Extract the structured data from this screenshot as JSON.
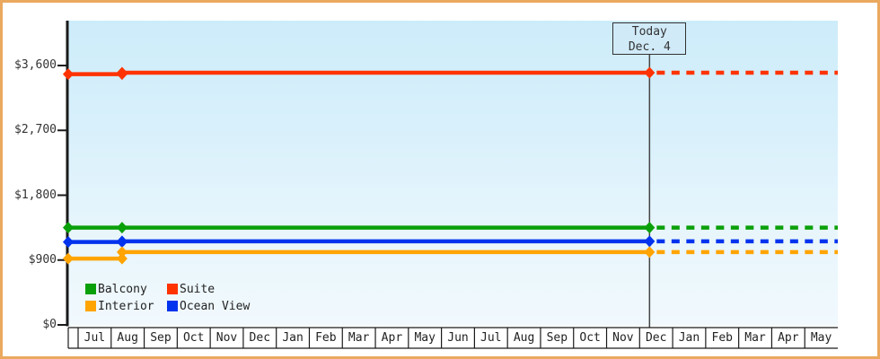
{
  "chart_data": {
    "type": "line",
    "title": "",
    "description": "Cabin price history with dashed future projection",
    "y_axis": {
      "ticks": [
        {
          "label": "$3,600",
          "value": 3600
        },
        {
          "label": "$2,700",
          "value": 2700
        },
        {
          "label": "$1,800",
          "value": 1800
        },
        {
          "label": "$900",
          "value": 900
        },
        {
          "label": "$0",
          "value": 0
        }
      ],
      "ylim": [
        0,
        4220
      ],
      "grid": false
    },
    "x_axis": {
      "months": [
        "Jul",
        "Aug",
        "Sep",
        "Oct",
        "Nov",
        "Dec",
        "Jan",
        "Feb",
        "Mar",
        "Apr",
        "May",
        "Jun",
        "Jul",
        "Aug",
        "Sep",
        "Oct",
        "Nov",
        "Dec",
        "Jan",
        "Feb",
        "Mar",
        "Apr",
        "May"
      ]
    },
    "today": {
      "line1": "Today",
      "line2": "Dec. 4",
      "month_pos": 17.3
    },
    "series": [
      {
        "name": "Suite",
        "color": "#ff3300",
        "points": [
          {
            "month_pos": -0.3,
            "price": 3480
          },
          {
            "month_pos": 1.33,
            "price": 3500
          },
          {
            "month_pos": 17.3,
            "price": 3500
          }
        ]
      },
      {
        "name": "Balcony",
        "color": "#0aa00a",
        "points": [
          {
            "month_pos": -0.3,
            "price": 1350
          },
          {
            "month_pos": 1.33,
            "price": 1350
          },
          {
            "month_pos": 17.3,
            "price": 1350
          }
        ]
      },
      {
        "name": "Ocean View",
        "color": "#0033ee",
        "points": [
          {
            "month_pos": -0.3,
            "price": 1150
          },
          {
            "month_pos": 1.33,
            "price": 1160
          },
          {
            "month_pos": 17.3,
            "price": 1160
          }
        ]
      },
      {
        "name": "Interior",
        "color": "#ffa400",
        "points": [
          {
            "month_pos": -0.3,
            "price": 920
          },
          {
            "month_pos": 1.33,
            "price": 1010
          },
          {
            "month_pos": 17.3,
            "price": 1010
          }
        ]
      }
    ],
    "projection": {
      "style": "dashed",
      "end_month_pos": 23
    },
    "legend": [
      {
        "label": "Balcony",
        "color": "#0aa00a"
      },
      {
        "label": "Suite",
        "color": "#ff3300"
      },
      {
        "label": "Interior",
        "color": "#ffa400"
      },
      {
        "label": "Ocean View",
        "color": "#0033ee"
      }
    ]
  }
}
